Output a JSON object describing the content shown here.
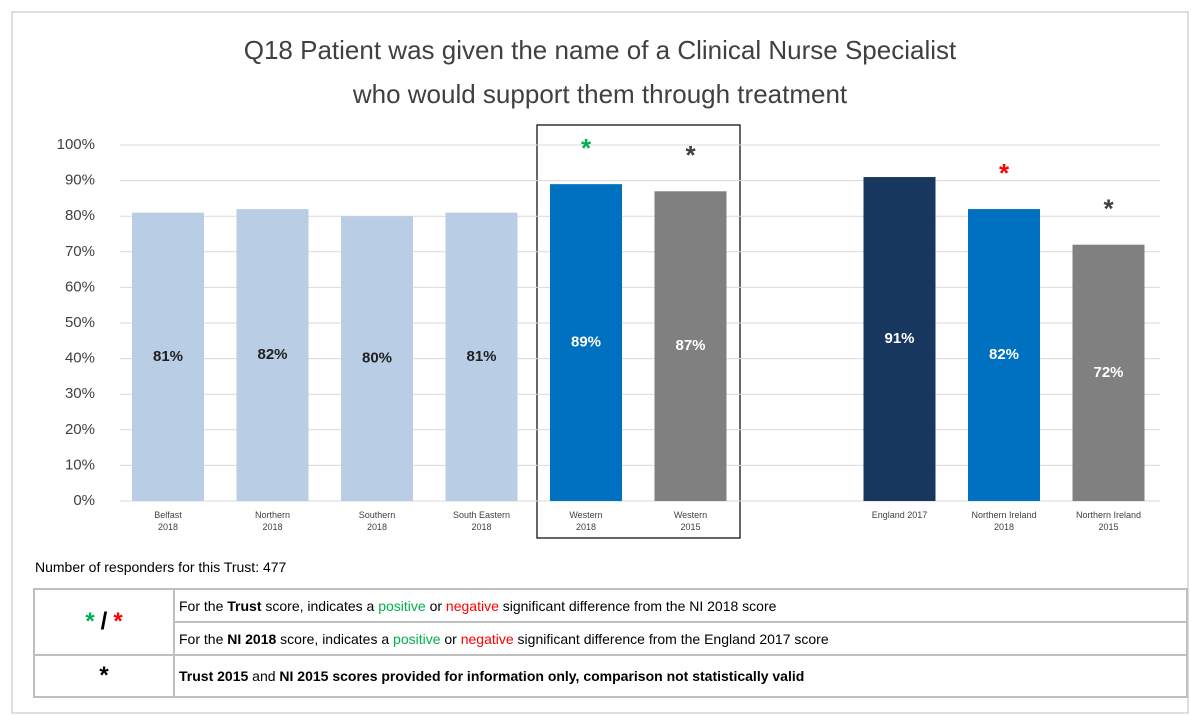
{
  "chart_data": {
    "type": "bar",
    "title": [
      "Q18 Patient was given the name of a Clinical Nurse Specialist",
      "who would support them through treatment"
    ],
    "categories": [
      "Belfast\n2018",
      "Northern\n2018",
      "Southern\n2018",
      "South Eastern\n2018",
      "Western\n2018",
      "Western\n2015",
      null,
      "England 2017",
      "Northern Ireland\n2018",
      "Northern Ireland\n2015"
    ],
    "values": [
      81,
      82,
      80,
      81,
      89,
      87,
      null,
      91,
      82,
      72
    ],
    "value_labels": [
      "81%",
      "82%",
      "80%",
      "81%",
      "89%",
      "87%",
      null,
      "91%",
      "82%",
      "72%"
    ],
    "colors": [
      "#b9cde5",
      "#b9cde5",
      "#b9cde5",
      "#b9cde5",
      "#0070c0",
      "#808080",
      null,
      "#17375e",
      "#0070c0",
      "#808080"
    ],
    "label_colors": [
      "#1f1f1f",
      "#1f1f1f",
      "#1f1f1f",
      "#1f1f1f",
      "#ffffff",
      "#ffffff",
      null,
      "#ffffff",
      "#ffffff",
      "#ffffff"
    ],
    "significance": [
      null,
      null,
      null,
      null,
      "*",
      "*",
      null,
      null,
      "*",
      "*"
    ],
    "significance_colors": [
      null,
      null,
      null,
      null,
      "#00b050",
      "#404040",
      null,
      null,
      "#ff0000",
      "#404040"
    ],
    "ylim": [
      0,
      100
    ],
    "yticks": [
      {
        "value": 0,
        "label": "0%"
      },
      {
        "value": 10,
        "label": "10%"
      },
      {
        "value": 20,
        "label": "20%"
      },
      {
        "value": 30,
        "label": "30%"
      },
      {
        "value": 40,
        "label": "40%"
      },
      {
        "value": 50,
        "label": "50%"
      },
      {
        "value": 60,
        "label": "60%"
      },
      {
        "value": 70,
        "label": "70%"
      },
      {
        "value": 80,
        "label": "80%"
      },
      {
        "value": 90,
        "label": "90%"
      },
      {
        "value": 100,
        "label": "100%"
      }
    ],
    "grid": true
  },
  "responders": "Number of responders for this Trust: 477",
  "legend_table": {
    "rows": [
      {
        "symbol": [
          {
            "text": "*",
            "color": "#00b050"
          },
          {
            "text": "/"
          },
          {
            "text": "*",
            "color": "#ff0000"
          }
        ],
        "lines": [
          [
            {
              "text": "For the "
            },
            {
              "text": "Trust",
              "bold": true
            },
            {
              "text": " score, indicates a "
            },
            {
              "text": "positive",
              "color": "#00b050"
            },
            {
              "text": " or "
            },
            {
              "text": "negative",
              "color": "#ff0000"
            },
            {
              "text": " significant difference from the NI 2018 score"
            }
          ],
          [
            {
              "text": "For the "
            },
            {
              "text": "NI 2018",
              "bold": true
            },
            {
              "text": " score, indicates a "
            },
            {
              "text": "positive",
              "color": "#00b050"
            },
            {
              "text": " or "
            },
            {
              "text": "negative",
              "color": "#ff0000"
            },
            {
              "text": " significant difference from the England 2017 score"
            }
          ]
        ]
      },
      {
        "symbol": [
          {
            "text": "*"
          }
        ],
        "lines": [
          [
            {
              "text": "Trust 2015",
              "bold": true
            },
            {
              "text": " and  "
            },
            {
              "text": "NI 2015",
              "bold": true
            },
            {
              "text": " scores provided for information only, comparison not statistically valid",
              "bold": true
            }
          ]
        ]
      }
    ]
  }
}
